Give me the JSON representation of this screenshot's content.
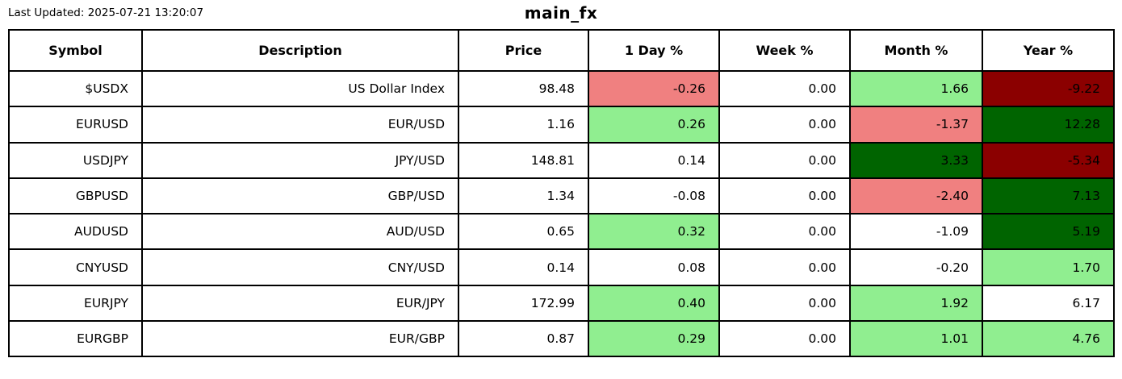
{
  "header": {
    "last_updated": "Last Updated: 2025-07-21 13:20:07",
    "title": "main_fx"
  },
  "colors": {
    "positive_strong": "#006400",
    "positive_mild": "#90ee90",
    "negative_strong": "#8b0000",
    "negative_mild": "#f08080",
    "neutral": "#ffffff",
    "border": "#000000",
    "text": "#000000",
    "background": "#ffffff"
  },
  "chart_data": {
    "type": "table",
    "title": "main_fx",
    "columns": [
      "Symbol",
      "Description",
      "Price",
      "1 Day %",
      "Week %",
      "Month %",
      "Year %"
    ],
    "rows": [
      {
        "cells": [
          {
            "text": "$USDX",
            "bg": "#ffffff"
          },
          {
            "text": "US Dollar Index",
            "bg": "#ffffff"
          },
          {
            "text": "98.48",
            "bg": "#ffffff"
          },
          {
            "text": "-0.26",
            "bg": "#f08080"
          },
          {
            "text": "0.00",
            "bg": "#ffffff"
          },
          {
            "text": "1.66",
            "bg": "#90ee90"
          },
          {
            "text": "-9.22",
            "bg": "#8b0000"
          }
        ]
      },
      {
        "cells": [
          {
            "text": "EURUSD",
            "bg": "#ffffff"
          },
          {
            "text": "EUR/USD",
            "bg": "#ffffff"
          },
          {
            "text": "1.16",
            "bg": "#ffffff"
          },
          {
            "text": "0.26",
            "bg": "#90ee90"
          },
          {
            "text": "0.00",
            "bg": "#ffffff"
          },
          {
            "text": "-1.37",
            "bg": "#f08080"
          },
          {
            "text": "12.28",
            "bg": "#006400"
          }
        ]
      },
      {
        "cells": [
          {
            "text": "USDJPY",
            "bg": "#ffffff"
          },
          {
            "text": "JPY/USD",
            "bg": "#ffffff"
          },
          {
            "text": "148.81",
            "bg": "#ffffff"
          },
          {
            "text": "0.14",
            "bg": "#ffffff"
          },
          {
            "text": "0.00",
            "bg": "#ffffff"
          },
          {
            "text": "3.33",
            "bg": "#006400"
          },
          {
            "text": "-5.34",
            "bg": "#8b0000"
          }
        ]
      },
      {
        "cells": [
          {
            "text": "GBPUSD",
            "bg": "#ffffff"
          },
          {
            "text": "GBP/USD",
            "bg": "#ffffff"
          },
          {
            "text": "1.34",
            "bg": "#ffffff"
          },
          {
            "text": "-0.08",
            "bg": "#ffffff"
          },
          {
            "text": "0.00",
            "bg": "#ffffff"
          },
          {
            "text": "-2.40",
            "bg": "#f08080"
          },
          {
            "text": "7.13",
            "bg": "#006400"
          }
        ]
      },
      {
        "cells": [
          {
            "text": "AUDUSD",
            "bg": "#ffffff"
          },
          {
            "text": "AUD/USD",
            "bg": "#ffffff"
          },
          {
            "text": "0.65",
            "bg": "#ffffff"
          },
          {
            "text": "0.32",
            "bg": "#90ee90"
          },
          {
            "text": "0.00",
            "bg": "#ffffff"
          },
          {
            "text": "-1.09",
            "bg": "#ffffff"
          },
          {
            "text": "5.19",
            "bg": "#006400"
          }
        ]
      },
      {
        "cells": [
          {
            "text": "CNYUSD",
            "bg": "#ffffff"
          },
          {
            "text": "CNY/USD",
            "bg": "#ffffff"
          },
          {
            "text": "0.14",
            "bg": "#ffffff"
          },
          {
            "text": "0.08",
            "bg": "#ffffff"
          },
          {
            "text": "0.00",
            "bg": "#ffffff"
          },
          {
            "text": "-0.20",
            "bg": "#ffffff"
          },
          {
            "text": "1.70",
            "bg": "#90ee90"
          }
        ]
      },
      {
        "cells": [
          {
            "text": "EURJPY",
            "bg": "#ffffff"
          },
          {
            "text": "EUR/JPY",
            "bg": "#ffffff"
          },
          {
            "text": "172.99",
            "bg": "#ffffff"
          },
          {
            "text": "0.40",
            "bg": "#90ee90"
          },
          {
            "text": "0.00",
            "bg": "#ffffff"
          },
          {
            "text": "1.92",
            "bg": "#90ee90"
          },
          {
            "text": "6.17",
            "bg": "#ffffff"
          }
        ]
      },
      {
        "cells": [
          {
            "text": "EURGBP",
            "bg": "#ffffff"
          },
          {
            "text": "EUR/GBP",
            "bg": "#ffffff"
          },
          {
            "text": "0.87",
            "bg": "#ffffff"
          },
          {
            "text": "0.29",
            "bg": "#90ee90"
          },
          {
            "text": "0.00",
            "bg": "#ffffff"
          },
          {
            "text": "1.01",
            "bg": "#90ee90"
          },
          {
            "text": "4.76",
            "bg": "#90ee90"
          }
        ]
      }
    ]
  }
}
